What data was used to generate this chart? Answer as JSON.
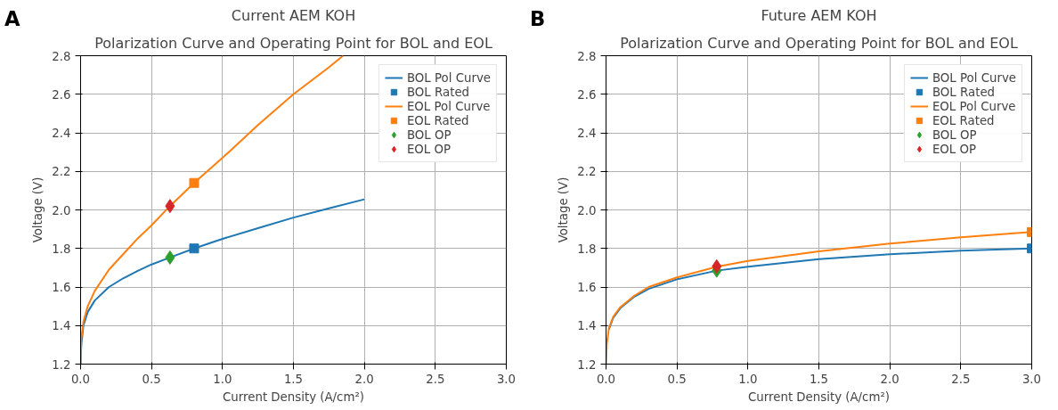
{
  "chart_data": [
    {
      "type": "line",
      "title": "Current AEM KOH",
      "subtitle": "Polarization Curve and Operating Point for BOL and EOL",
      "xlabel": "Current Density (A/cm²)",
      "ylabel": "Voltage (V)",
      "annotations": [
        "A"
      ],
      "xlim": [
        0,
        3
      ],
      "ylim": [
        1.2,
        2.8
      ],
      "xticks": [
        {
          "value": 0,
          "label": "0.0"
        },
        0.5,
        {
          "value": 1,
          "label": "1.0"
        },
        1.5,
        {
          "value": 2,
          "label": "2.0"
        },
        2.5,
        {
          "value": 3,
          "label": "3.0"
        }
      ],
      "yticks": [
        1.2,
        1.4,
        1.6,
        1.8,
        {
          "value": 2,
          "label": "2.0"
        },
        2.2,
        2.4,
        2.6,
        2.8
      ],
      "grid": true,
      "legend": "top right",
      "series": [
        {
          "name": "BOL Pol Curve",
          "color": "#1f77b4",
          "x": [
            0,
            0.005,
            0.02,
            0.05,
            0.1,
            0.2,
            0.3,
            0.4,
            0.5,
            0.63,
            0.8,
            1.0,
            1.25,
            1.5,
            1.75,
            2.0
          ],
          "values": [
            1.2,
            1.3,
            1.4,
            1.47,
            1.53,
            1.6,
            1.645,
            1.683,
            1.717,
            1.753,
            1.8,
            1.85,
            1.905,
            1.96,
            2.008,
            2.055
          ]
        },
        {
          "name": "BOL Rated",
          "type": "scatter",
          "marker": "square",
          "color": "#1f77b4",
          "x": [
            0.8
          ],
          "values": [
            1.8
          ]
        },
        {
          "name": "EOL Pol Curve",
          "color": "#ff7f0e",
          "x": [
            0,
            0.005,
            0.02,
            0.05,
            0.1,
            0.2,
            0.3,
            0.4,
            0.5,
            0.63,
            0.8,
            1.0,
            1.25,
            1.5,
            1.75,
            1.85
          ],
          "values": [
            1.2,
            1.33,
            1.42,
            1.5,
            1.58,
            1.69,
            1.77,
            1.85,
            1.92,
            2.02,
            2.14,
            2.27,
            2.44,
            2.6,
            2.74,
            2.8
          ]
        },
        {
          "name": "EOL Rated",
          "type": "scatter",
          "marker": "square",
          "color": "#ff7f0e",
          "x": [
            0.8
          ],
          "values": [
            2.14
          ]
        },
        {
          "name": "BOL OP",
          "type": "scatter",
          "marker": "diamond",
          "color": "#2ca02c",
          "x": [
            0.63
          ],
          "values": [
            1.753
          ]
        },
        {
          "name": "EOL OP",
          "type": "scatter",
          "marker": "diamond",
          "color": "#d62728",
          "x": [
            0.63
          ],
          "values": [
            2.02
          ]
        }
      ]
    },
    {
      "type": "line",
      "title": "Future AEM KOH",
      "subtitle": "Polarization Curve and Operating Point for BOL and EOL",
      "xlabel": "Current Density (A/cm²)",
      "ylabel": "Voltage (V)",
      "annotations": [
        "B"
      ],
      "xlim": [
        0,
        3
      ],
      "ylim": [
        1.2,
        2.8
      ],
      "xticks": [
        {
          "value": 0,
          "label": "0.0"
        },
        0.5,
        {
          "value": 1,
          "label": "1.0"
        },
        1.5,
        {
          "value": 2,
          "label": "2.0"
        },
        2.5,
        {
          "value": 3,
          "label": "3.0"
        }
      ],
      "yticks": [
        1.2,
        1.4,
        1.6,
        1.8,
        {
          "value": 2,
          "label": "2.0"
        },
        2.2,
        2.4,
        2.6,
        2.8
      ],
      "grid": true,
      "legend": "top right",
      "series": [
        {
          "name": "BOL Pol Curve",
          "color": "#1f77b4",
          "x": [
            0.02,
            0.05,
            0.1,
            0.2,
            0.3,
            0.5,
            0.78,
            1.0,
            1.5,
            2.0,
            2.5,
            3.0
          ],
          "values": [
            1.38,
            1.44,
            1.49,
            1.55,
            1.59,
            1.64,
            1.685,
            1.705,
            1.745,
            1.77,
            1.788,
            1.8
          ]
        },
        {
          "name": "BOL Rated",
          "type": "scatter",
          "marker": "square",
          "color": "#1f77b4",
          "x": [
            3.0
          ],
          "values": [
            1.8
          ]
        },
        {
          "name": "EOL Pol Curve",
          "color": "#ff7f0e",
          "x": [
            0,
            0.005,
            0.02,
            0.05,
            0.1,
            0.2,
            0.3,
            0.5,
            0.78,
            1.0,
            1.5,
            2.0,
            2.5,
            3.0
          ],
          "values": [
            1.2,
            1.3,
            1.385,
            1.445,
            1.495,
            1.555,
            1.6,
            1.65,
            1.705,
            1.735,
            1.785,
            1.825,
            1.858,
            1.885
          ]
        },
        {
          "name": "EOL Rated",
          "type": "scatter",
          "marker": "square",
          "color": "#ff7f0e",
          "x": [
            3.0
          ],
          "values": [
            1.885
          ]
        },
        {
          "name": "BOL OP",
          "type": "scatter",
          "marker": "diamond",
          "color": "#2ca02c",
          "x": [
            0.78
          ],
          "values": [
            1.685
          ]
        },
        {
          "name": "EOL OP",
          "type": "scatter",
          "marker": "diamond",
          "color": "#d62728",
          "x": [
            0.78
          ],
          "values": [
            1.707
          ]
        }
      ]
    }
  ]
}
